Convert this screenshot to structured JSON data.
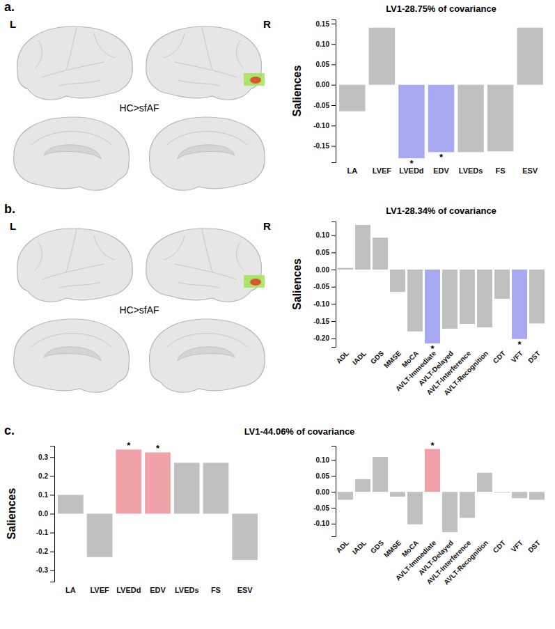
{
  "chart_data": [
    {
      "type": "bar",
      "title": "LV1-28.75% of covariance",
      "y_label": "Saliences",
      "categories": [
        "LA",
        "LVEF",
        "LVEDd",
        "EDV",
        "LVEDs",
        "FS",
        "ESV"
      ],
      "values": [
        -0.065,
        0.14,
        -0.18,
        -0.165,
        -0.165,
        -0.163,
        0.14
      ],
      "colors": [
        "#c0c0c0",
        "#c0c0c0",
        "#a6a9f2",
        "#a6a9f2",
        "#c0c0c0",
        "#c0c0c0",
        "#c0c0c0"
      ],
      "annotations": [
        null,
        null,
        "*",
        "*",
        null,
        null,
        null
      ],
      "ylim": [
        -0.19,
        0.16
      ],
      "yticks": [
        {
          "value": -0.15,
          "label": "-0.15"
        },
        {
          "value": -0.1,
          "label": "-0.10"
        },
        {
          "value": -0.05,
          "label": "-0.05"
        },
        {
          "value": 0,
          "label": "0.00"
        },
        {
          "value": 0.05,
          "label": "0.05"
        },
        {
          "value": 0.1,
          "label": "0.10"
        },
        {
          "value": 0.15,
          "label": "0.15"
        }
      ],
      "grid": false
    },
    {
      "type": "bar",
      "title": "LV1-28.34% of covariance",
      "y_label": "Saliences",
      "categories": [
        "ADL",
        "IADL",
        "GDS",
        "MMSE",
        "MoCA",
        "AVLT-Immediate",
        "AVLT-Delayed",
        "AVLT-Interference",
        "AVLT-Recognition",
        "CDT",
        "VFT",
        "DST"
      ],
      "values": [
        0.005,
        0.13,
        0.093,
        -0.065,
        -0.18,
        -0.215,
        -0.172,
        -0.158,
        -0.168,
        -0.085,
        -0.202,
        -0.157
      ],
      "colors": [
        "#c0c0c0",
        "#c0c0c0",
        "#c0c0c0",
        "#c0c0c0",
        "#c0c0c0",
        "#a6a9f2",
        "#c0c0c0",
        "#c0c0c0",
        "#c0c0c0",
        "#c0c0c0",
        "#a6a9f2",
        "#c0c0c0"
      ],
      "annotations": [
        null,
        null,
        null,
        null,
        null,
        "*",
        null,
        null,
        null,
        null,
        "*",
        null
      ],
      "ylim": [
        -0.225,
        0.14
      ],
      "yticks": [
        {
          "value": -0.2,
          "label": "-0.20"
        },
        {
          "value": -0.15,
          "label": "-0.15"
        },
        {
          "value": -0.1,
          "label": "-0.10"
        },
        {
          "value": -0.05,
          "label": "-0.05"
        },
        {
          "value": 0,
          "label": "0.00"
        },
        {
          "value": 0.05,
          "label": "0.05"
        },
        {
          "value": 0.1,
          "label": "0.10"
        }
      ],
      "grid": false
    },
    {
      "type": "bar",
      "title": "LV1-44.06% of covariance",
      "y_label": "Saliences",
      "categories": [
        "LA",
        "LVEF",
        "LVEDd",
        "EDV",
        "LVEDs",
        "FS",
        "ESV"
      ],
      "values": [
        0.1,
        -0.23,
        0.34,
        0.325,
        0.27,
        0.27,
        -0.245
      ],
      "colors": [
        "#c0c0c0",
        "#c0c0c0",
        "#f0a2a8",
        "#f0a2a8",
        "#c0c0c0",
        "#c0c0c0",
        "#c0c0c0"
      ],
      "annotations": [
        null,
        null,
        "*",
        "*",
        null,
        null,
        null
      ],
      "ylim": [
        -0.36,
        0.36
      ],
      "yticks": [
        {
          "value": -0.3,
          "label": "-0.3"
        },
        {
          "value": -0.2,
          "label": "-0.2"
        },
        {
          "value": -0.1,
          "label": "-0.1"
        },
        {
          "value": 0,
          "label": "0.0"
        },
        {
          "value": 0.1,
          "label": "0.1"
        },
        {
          "value": 0.2,
          "label": "0.2"
        },
        {
          "value": 0.3,
          "label": "0.3"
        }
      ],
      "grid": false
    },
    {
      "type": "bar",
      "categories": [
        "ADL",
        "IADL",
        "GDS",
        "MMSE",
        "MoCA",
        "AVLT-Immediate",
        "AVLT-Delayed",
        "AVLT-Interference",
        "AVLT-Recognition",
        "CDT",
        "VFT",
        "DST"
      ],
      "values": [
        -0.025,
        0.04,
        0.11,
        -0.015,
        -0.102,
        0.135,
        -0.127,
        -0.082,
        0.06,
        -0.002,
        -0.02,
        -0.025
      ],
      "colors": [
        "#c0c0c0",
        "#c0c0c0",
        "#c0c0c0",
        "#c0c0c0",
        "#c0c0c0",
        "#f0a2a8",
        "#c0c0c0",
        "#c0c0c0",
        "#c0c0c0",
        "#c0c0c0",
        "#c0c0c0",
        "#c0c0c0"
      ],
      "annotations": [
        null,
        null,
        null,
        null,
        null,
        "*",
        null,
        null,
        null,
        null,
        null,
        null
      ],
      "ylim": [
        -0.14,
        0.145
      ],
      "yticks": [
        {
          "value": -0.1,
          "label": "-0.10"
        },
        {
          "value": -0.05,
          "label": "-0.05"
        },
        {
          "value": 0,
          "label": "0.00"
        },
        {
          "value": 0.05,
          "label": "0.05"
        },
        {
          "value": 0.1,
          "label": "0.10"
        }
      ],
      "grid": false
    }
  ],
  "figure": {
    "panels": [
      {
        "letter": "a.",
        "hemisphere_left": "L",
        "hemisphere_right": "R",
        "contrast": "HC>sfAF"
      },
      {
        "letter": "b.",
        "hemisphere_left": "L",
        "hemisphere_right": "R",
        "contrast": "HC>sfAF"
      },
      {
        "letter": "c."
      }
    ]
  }
}
